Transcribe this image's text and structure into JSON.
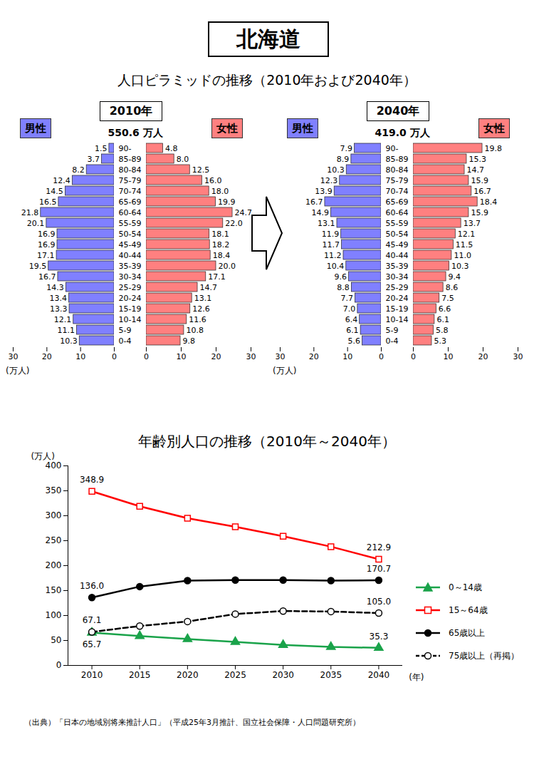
{
  "title": "北海道",
  "subtitle": "人口ピラミッドの推移（2010年および2040年）",
  "source": "（出典）「日本の地域別将来推計人口」（平成25年3月推計、国立社会保障・人口問題研究所）",
  "chart_data": [
    {
      "type": "bar",
      "orientation": "horizontal",
      "title": "2010年",
      "annotations": [
        "550.6 万人"
      ],
      "categories": [
        "90-",
        "85-89",
        "80-84",
        "75-79",
        "70-74",
        "65-69",
        "60-64",
        "55-59",
        "50-54",
        "45-49",
        "40-44",
        "35-39",
        "30-34",
        "25-29",
        "20-24",
        "15-19",
        "10-14",
        "5-9",
        "0-4"
      ],
      "series": [
        {
          "name": "男性",
          "color": "#8080ff",
          "values": [
            1.5,
            3.7,
            8.2,
            12.4,
            14.5,
            16.5,
            21.8,
            20.1,
            16.9,
            16.9,
            17.1,
            19.5,
            16.7,
            14.3,
            13.4,
            13.3,
            12.1,
            11.1,
            10.3
          ],
          "value_labels": [
            "1.5",
            "3.7",
            "8.2",
            "12.4",
            "14.5",
            "16.5",
            "21.8",
            "20.1",
            "16.9",
            "16.9",
            "17.1",
            "19.5",
            "16.7",
            "14.3",
            "13.4",
            "13.3",
            "12.1",
            "11.1",
            "10.3"
          ]
        },
        {
          "name": "女性",
          "color": "#ff8080",
          "values": [
            4.8,
            8.0,
            12.5,
            16.0,
            18.0,
            19.9,
            24.7,
            22.0,
            18.1,
            18.2,
            18.4,
            20.0,
            17.1,
            14.7,
            13.1,
            12.6,
            11.6,
            10.8,
            9.8
          ],
          "value_labels": [
            "4.8",
            "8.0",
            "12.5",
            "16.0",
            "18.0",
            "19.9",
            "24.7",
            "22.0",
            "18.1",
            "18.2",
            "18.4",
            "20.0",
            "17.1",
            "14.7",
            "13.1",
            "12.6",
            "11.6",
            "10.8",
            "9.8"
          ]
        }
      ],
      "xlim": [
        0,
        30
      ],
      "xticks": [
        0,
        10,
        20,
        30
      ],
      "xlabel": "(万人)",
      "data_labels": true
    },
    {
      "type": "bar",
      "orientation": "horizontal",
      "title": "2040年",
      "annotations": [
        "419.0 万人"
      ],
      "categories": [
        "90-",
        "85-89",
        "80-84",
        "75-79",
        "70-74",
        "65-69",
        "60-64",
        "55-59",
        "50-54",
        "45-49",
        "40-44",
        "35-39",
        "30-34",
        "25-29",
        "20-24",
        "15-19",
        "10-14",
        "5-9",
        "0-4"
      ],
      "series": [
        {
          "name": "男性",
          "color": "#8080ff",
          "values": [
            7.9,
            8.9,
            10.3,
            12.3,
            13.9,
            16.7,
            14.9,
            13.1,
            11.9,
            11.7,
            11.2,
            10.4,
            9.6,
            8.8,
            7.7,
            7.0,
            6.4,
            6.1,
            5.6
          ],
          "value_labels": [
            "7.9",
            "8.9",
            "10.3",
            "12.3",
            "13.9",
            "16.7",
            "14.9",
            "13.1",
            "11.9",
            "11.7",
            "11.2",
            "10.4",
            "9.6",
            "8.8",
            "7.7",
            "7.0",
            "6.4",
            "6.1",
            "5.6"
          ]
        },
        {
          "name": "女性",
          "color": "#ff8080",
          "values": [
            19.8,
            15.3,
            14.7,
            15.9,
            16.7,
            18.4,
            15.9,
            13.7,
            12.1,
            11.5,
            11.0,
            10.3,
            9.4,
            8.6,
            7.5,
            6.6,
            6.1,
            5.8,
            5.3
          ],
          "value_labels": [
            "19.8",
            "15.3",
            "14.7",
            "15.9",
            "16.7",
            "18.4",
            "15.9",
            "13.7",
            "12.1",
            "11.5",
            "11.0",
            "10.3",
            "9.4",
            "8.6",
            "7.5",
            "6.6",
            "6.1",
            "5.8",
            "5.3"
          ]
        }
      ],
      "xlim": [
        0,
        30
      ],
      "xticks": [
        0,
        10,
        20,
        30
      ],
      "xlabel": "(万人)",
      "data_labels": true
    },
    {
      "type": "line",
      "title": "年齢別人口の推移（2010年～2040年）",
      "x": [
        2010,
        2015,
        2020,
        2025,
        2030,
        2035,
        2040
      ],
      "xlim": [
        2007.5,
        2042.5
      ],
      "xticks": [
        2010,
        2015,
        2020,
        2025,
        2030,
        2035,
        2040
      ],
      "ylim": [
        0,
        400
      ],
      "yticks": [
        0,
        50,
        100,
        150,
        200,
        250,
        300,
        350,
        400
      ],
      "xlabel": "(年)",
      "ylabel": "(万人)",
      "legend": "right",
      "data_labels": true,
      "series": [
        {
          "name": "0～14歳",
          "color": "#1aa34a",
          "marker": "triangle",
          "line_style": "solid",
          "values": [
            65.7,
            59.0,
            53.0,
            47.0,
            41.0,
            37.0,
            35.3
          ],
          "value_labels": [
            "65.7",
            null,
            null,
            null,
            null,
            null,
            "35.3"
          ]
        },
        {
          "name": "15～64歳",
          "color": "#ff0000",
          "marker": "square-open",
          "line_style": "solid",
          "values": [
            348.9,
            319.0,
            295.0,
            278.0,
            259.0,
            238.0,
            212.9
          ],
          "value_labels": [
            "348.9",
            null,
            null,
            null,
            null,
            null,
            "212.9"
          ]
        },
        {
          "name": "65歳以上",
          "color": "#000000",
          "marker": "circle",
          "line_style": "solid",
          "values": [
            136.0,
            158.0,
            170.0,
            171.0,
            171.0,
            170.0,
            170.7
          ],
          "value_labels": [
            "136.0",
            null,
            null,
            null,
            null,
            null,
            "170.7"
          ]
        },
        {
          "name": "75歳以上（再掲）",
          "color": "#000000",
          "marker": "circle-open",
          "line_style": "dashed",
          "values": [
            67.1,
            79.0,
            88.0,
            103.0,
            109.0,
            108.0,
            105.0
          ],
          "value_labels": [
            "67.1",
            null,
            null,
            null,
            null,
            null,
            "105.0"
          ]
        }
      ]
    }
  ]
}
